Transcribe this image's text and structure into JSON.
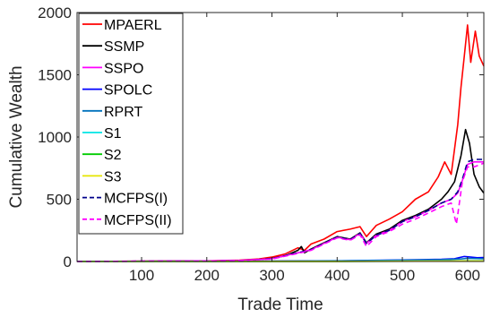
{
  "chart_data": {
    "type": "line",
    "title": "",
    "xlabel": "Trade Time",
    "ylabel": "Cumulative Wealth",
    "xlim": [
      1,
      625
    ],
    "ylim": [
      0,
      2000
    ],
    "xticks": [
      100,
      200,
      300,
      400,
      500,
      600
    ],
    "yticks": [
      0,
      500,
      1000,
      1500,
      2000
    ],
    "grid": false,
    "legend_position": "top-left",
    "series": [
      {
        "name": "MPAERL",
        "color": "#ff0000",
        "dash": "solid",
        "x": [
          1,
          100,
          200,
          250,
          280,
          300,
          320,
          340,
          350,
          360,
          380,
          400,
          420,
          435,
          445,
          460,
          480,
          500,
          520,
          540,
          555,
          565,
          575,
          585,
          590,
          595,
          600,
          605,
          612,
          618,
          625
        ],
        "y": [
          0,
          2,
          5,
          10,
          20,
          35,
          60,
          110,
          90,
          140,
          180,
          240,
          260,
          280,
          200,
          290,
          340,
          400,
          500,
          560,
          680,
          800,
          700,
          1100,
          1400,
          1650,
          1900,
          1600,
          1850,
          1650,
          1570
        ]
      },
      {
        "name": "SSMP",
        "color": "#000000",
        "dash": "solid",
        "x": [
          1,
          100,
          200,
          250,
          280,
          300,
          320,
          340,
          345,
          350,
          360,
          380,
          400,
          420,
          435,
          445,
          460,
          480,
          500,
          520,
          540,
          560,
          570,
          580,
          590,
          597,
          603,
          610,
          618,
          625
        ],
        "y": [
          0,
          2,
          4,
          8,
          15,
          25,
          45,
          90,
          120,
          70,
          100,
          150,
          200,
          180,
          230,
          150,
          220,
          260,
          330,
          370,
          420,
          500,
          560,
          640,
          850,
          1060,
          950,
          700,
          600,
          550
        ]
      },
      {
        "name": "SSPO",
        "color": "#ff00ff",
        "dash": "solid",
        "x": [
          1,
          100,
          200,
          250,
          300,
          340,
          360,
          380,
          400,
          420,
          435,
          445,
          460,
          480,
          500,
          520,
          540,
          560,
          575,
          585,
          592,
          600,
          610,
          625
        ],
        "y": [
          0,
          2,
          4,
          8,
          22,
          70,
          95,
          145,
          195,
          175,
          225,
          145,
          210,
          250,
          320,
          360,
          410,
          470,
          500,
          550,
          650,
          780,
          800,
          800
        ]
      },
      {
        "name": "SPOLC",
        "color": "#0000ff",
        "dash": "solid",
        "x": [
          1,
          200,
          300,
          400,
          500,
          560,
          580,
          595,
          605,
          615,
          625
        ],
        "y": [
          0,
          0,
          3,
          6,
          12,
          18,
          22,
          40,
          35,
          30,
          32
        ]
      },
      {
        "name": "RPRT",
        "color": "#0072bd",
        "dash": "solid",
        "x": [
          1,
          200,
          300,
          400,
          500,
          560,
          590,
          600,
          625
        ],
        "y": [
          0,
          0,
          2,
          5,
          10,
          14,
          20,
          25,
          22
        ]
      },
      {
        "name": "S1",
        "color": "#00e5e5",
        "dash": "solid",
        "x": [
          1,
          200,
          400,
          600,
          625
        ],
        "y": [
          0,
          0,
          2,
          6,
          6
        ]
      },
      {
        "name": "S2",
        "color": "#00cc00",
        "dash": "solid",
        "x": [
          1,
          200,
          400,
          600,
          625
        ],
        "y": [
          0,
          0,
          1,
          3,
          3
        ]
      },
      {
        "name": "S3",
        "color": "#e5e500",
        "dash": "solid",
        "x": [
          1,
          200,
          400,
          600,
          625
        ],
        "y": [
          0,
          0,
          1,
          4,
          4
        ]
      },
      {
        "name": "MCFPS(I)",
        "color": "#00008b",
        "dash": "dashed",
        "x": [
          1,
          100,
          200,
          250,
          300,
          340,
          360,
          380,
          400,
          420,
          435,
          445,
          460,
          480,
          500,
          520,
          540,
          560,
          575,
          585,
          592,
          600,
          610,
          625
        ],
        "y": [
          0,
          2,
          4,
          8,
          22,
          70,
          95,
          145,
          195,
          175,
          225,
          145,
          210,
          250,
          320,
          360,
          410,
          470,
          500,
          560,
          660,
          800,
          820,
          820
        ]
      },
      {
        "name": "MCFPS(II)",
        "color": "#ff00ff",
        "dash": "dashed",
        "x": [
          1,
          100,
          200,
          250,
          300,
          340,
          360,
          380,
          400,
          420,
          435,
          445,
          460,
          480,
          500,
          520,
          540,
          560,
          575,
          583,
          592,
          600,
          610,
          625
        ],
        "y": [
          0,
          2,
          4,
          8,
          20,
          65,
          90,
          140,
          190,
          170,
          215,
          120,
          200,
          240,
          300,
          340,
          390,
          440,
          470,
          300,
          640,
          760,
          760,
          790
        ]
      }
    ]
  }
}
